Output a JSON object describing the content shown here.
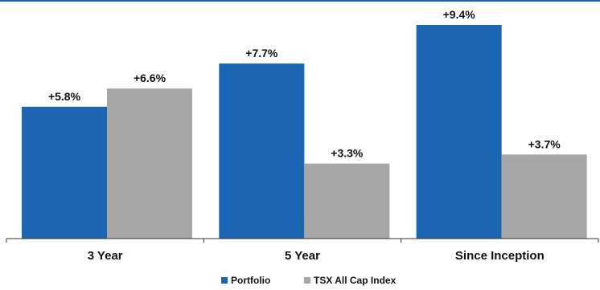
{
  "chart_data": {
    "type": "bar",
    "categories": [
      "3 Year",
      "5 Year",
      "Since Inception"
    ],
    "series": [
      {
        "name": "Portfolio",
        "color": "#1a66b3",
        "values": [
          5.8,
          7.7,
          9.4
        ],
        "labels": [
          "+5.8%",
          "+7.7%",
          "+9.4%"
        ]
      },
      {
        "name": "TSX All Cap Index",
        "color": "#a6a6a6",
        "values": [
          6.6,
          3.3,
          3.7
        ],
        "labels": [
          "+6.6%",
          "+3.3%",
          "+3.7%"
        ]
      }
    ],
    "ylim": [
      0,
      10
    ],
    "grid": false,
    "legend_position": "bottom-center",
    "title": "",
    "xlabel": "",
    "ylabel": ""
  }
}
